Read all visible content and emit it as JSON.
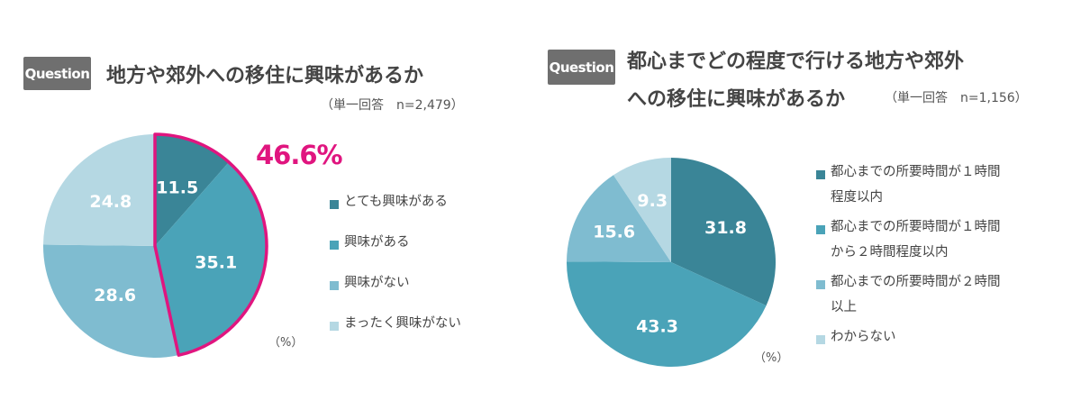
{
  "colors": {
    "badge": "#6f6f6f",
    "highlight": "#e0157f",
    "slices": [
      "#3a8597",
      "#4aa3b8",
      "#7fbcd0",
      "#b5d8e3"
    ]
  },
  "panels": [
    {
      "badge": "Question",
      "title_lines": [
        "地方や郊外への移住に興味があるか"
      ],
      "subtitle": "（単一回答　n=2,479）",
      "unit": "（%）",
      "highlight_label": "46.6%",
      "legend": [
        "とても興味がある",
        "興味がある",
        "興味がない",
        "まったく興味がない"
      ]
    },
    {
      "badge": "Question",
      "title_lines": [
        "都心までどの程度で行ける地方や郊外",
        "への移住に興味があるか"
      ],
      "subtitle": "（単一回答　n=1,156）",
      "unit": "（%）",
      "legend": [
        "都心までの所要時間が１時間\n程度以内",
        "都心までの所要時間が１時間\nから２時間程度以内",
        "都心までの所要時間が２時間\n以上",
        "わからない"
      ]
    }
  ],
  "chart_data": [
    {
      "type": "pie",
      "title": "地方や郊外への移住に興味があるか",
      "categories": [
        "とても興味がある",
        "興味がある",
        "興味がない",
        "まったく興味がない"
      ],
      "values": [
        11.5,
        35.1,
        28.6,
        24.8
      ],
      "labels": [
        "11.5",
        "35.1",
        "28.6",
        "24.8"
      ],
      "highlight": {
        "indices": [
          0,
          1
        ],
        "label": "46.6%"
      }
    },
    {
      "type": "pie",
      "title": "都心までどの程度で行ける地方や郊外への移住に興味があるか",
      "categories": [
        "都心までの所要時間が１時間程度以内",
        "都心までの所要時間が１時間から２時間程度以内",
        "都心までの所要時間が２時間以上",
        "わからない"
      ],
      "values": [
        31.8,
        43.3,
        15.6,
        9.3
      ],
      "labels": [
        "31.8",
        "43.3",
        "15.6",
        "9.3"
      ]
    }
  ]
}
